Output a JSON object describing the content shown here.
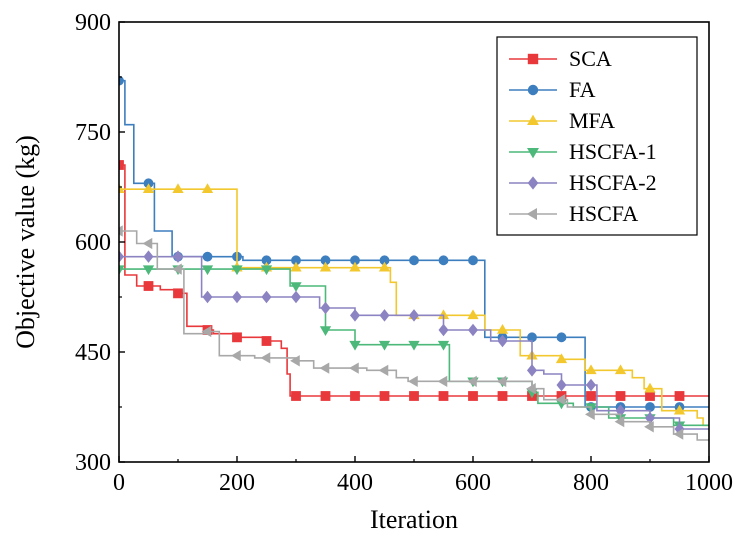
{
  "chart_data": {
    "type": "line",
    "title": "",
    "xlabel": "Iteration",
    "ylabel": "Objective value (kg)",
    "xlim": [
      0,
      1000
    ],
    "ylim": [
      300,
      900
    ],
    "xticks": [
      0,
      200,
      400,
      600,
      800,
      1000
    ],
    "yticks": [
      300,
      450,
      600,
      750,
      900
    ],
    "grid": false,
    "legend_position": "top-right",
    "series": [
      {
        "name": "SCA",
        "color": "#e8383b",
        "marker": "square",
        "points": [
          [
            0,
            705
          ],
          [
            10,
            705
          ],
          [
            10,
            555
          ],
          [
            30,
            555
          ],
          [
            30,
            540
          ],
          [
            70,
            540
          ],
          [
            70,
            535
          ],
          [
            100,
            535
          ],
          [
            100,
            530
          ],
          [
            115,
            530
          ],
          [
            115,
            485
          ],
          [
            150,
            485
          ],
          [
            150,
            480
          ],
          [
            160,
            480
          ],
          [
            160,
            475
          ],
          [
            200,
            475
          ],
          [
            200,
            470
          ],
          [
            250,
            470
          ],
          [
            250,
            465
          ],
          [
            275,
            465
          ],
          [
            275,
            455
          ],
          [
            285,
            455
          ],
          [
            285,
            420
          ],
          [
            290,
            420
          ],
          [
            290,
            390
          ],
          [
            1000,
            390
          ]
        ],
        "marker_x": [
          0,
          50,
          100,
          150,
          200,
          250,
          300,
          350,
          400,
          450,
          500,
          550,
          600,
          650,
          700,
          750,
          800,
          850,
          900,
          950
        ]
      },
      {
        "name": "FA",
        "color": "#3d7ebf",
        "marker": "circle",
        "points": [
          [
            0,
            820
          ],
          [
            10,
            820
          ],
          [
            10,
            760
          ],
          [
            25,
            760
          ],
          [
            25,
            680
          ],
          [
            60,
            680
          ],
          [
            60,
            615
          ],
          [
            90,
            615
          ],
          [
            90,
            580
          ],
          [
            210,
            580
          ],
          [
            210,
            575
          ],
          [
            620,
            575
          ],
          [
            620,
            470
          ],
          [
            790,
            470
          ],
          [
            790,
            375
          ],
          [
            1000,
            375
          ]
        ],
        "marker_x": [
          0,
          50,
          100,
          150,
          200,
          250,
          300,
          350,
          400,
          450,
          500,
          550,
          600,
          650,
          700,
          750,
          800,
          850,
          900,
          950
        ]
      },
      {
        "name": "MFA",
        "color": "#f2c82e",
        "marker": "triangle-up",
        "points": [
          [
            0,
            672
          ],
          [
            200,
            672
          ],
          [
            200,
            565
          ],
          [
            460,
            565
          ],
          [
            460,
            545
          ],
          [
            470,
            545
          ],
          [
            470,
            500
          ],
          [
            620,
            500
          ],
          [
            620,
            480
          ],
          [
            680,
            480
          ],
          [
            680,
            445
          ],
          [
            750,
            445
          ],
          [
            750,
            440
          ],
          [
            790,
            440
          ],
          [
            790,
            425
          ],
          [
            870,
            425
          ],
          [
            870,
            415
          ],
          [
            890,
            415
          ],
          [
            890,
            400
          ],
          [
            920,
            400
          ],
          [
            920,
            370
          ],
          [
            980,
            370
          ],
          [
            980,
            360
          ],
          [
            990,
            360
          ],
          [
            990,
            350
          ],
          [
            1000,
            350
          ]
        ],
        "marker_x": [
          0,
          50,
          100,
          150,
          200,
          250,
          300,
          350,
          400,
          450,
          500,
          550,
          600,
          650,
          700,
          750,
          800,
          850,
          900,
          950
        ]
      },
      {
        "name": "HSCFA-1",
        "color": "#4cb87a",
        "marker": "triangle-down",
        "points": [
          [
            0,
            563
          ],
          [
            290,
            563
          ],
          [
            290,
            540
          ],
          [
            350,
            540
          ],
          [
            350,
            480
          ],
          [
            400,
            480
          ],
          [
            400,
            460
          ],
          [
            560,
            460
          ],
          [
            560,
            410
          ],
          [
            700,
            410
          ],
          [
            700,
            395
          ],
          [
            710,
            395
          ],
          [
            710,
            380
          ],
          [
            770,
            380
          ],
          [
            770,
            375
          ],
          [
            830,
            375
          ],
          [
            830,
            360
          ],
          [
            940,
            360
          ],
          [
            940,
            350
          ],
          [
            1000,
            350
          ]
        ],
        "marker_x": [
          0,
          50,
          100,
          150,
          200,
          250,
          300,
          350,
          400,
          450,
          500,
          550,
          600,
          650,
          700,
          750,
          800,
          850,
          900,
          950
        ]
      },
      {
        "name": "HSCFA-2",
        "color": "#8c84c2",
        "marker": "diamond",
        "points": [
          [
            0,
            580
          ],
          [
            140,
            580
          ],
          [
            140,
            525
          ],
          [
            340,
            525
          ],
          [
            340,
            510
          ],
          [
            400,
            510
          ],
          [
            400,
            500
          ],
          [
            550,
            500
          ],
          [
            550,
            480
          ],
          [
            630,
            480
          ],
          [
            630,
            465
          ],
          [
            700,
            465
          ],
          [
            700,
            425
          ],
          [
            720,
            425
          ],
          [
            720,
            420
          ],
          [
            750,
            420
          ],
          [
            750,
            405
          ],
          [
            810,
            405
          ],
          [
            810,
            370
          ],
          [
            900,
            370
          ],
          [
            900,
            360
          ],
          [
            950,
            360
          ],
          [
            950,
            345
          ],
          [
            1000,
            345
          ]
        ],
        "marker_x": [
          0,
          50,
          100,
          150,
          200,
          250,
          300,
          350,
          400,
          450,
          500,
          550,
          600,
          650,
          700,
          750,
          800,
          850,
          900,
          950
        ]
      },
      {
        "name": "HSCFA",
        "color": "#a8a8a8",
        "marker": "triangle-left",
        "points": [
          [
            0,
            615
          ],
          [
            30,
            615
          ],
          [
            30,
            598
          ],
          [
            65,
            598
          ],
          [
            65,
            563
          ],
          [
            110,
            563
          ],
          [
            110,
            475
          ],
          [
            150,
            475
          ],
          [
            150,
            478
          ],
          [
            170,
            478
          ],
          [
            170,
            445
          ],
          [
            230,
            445
          ],
          [
            230,
            442
          ],
          [
            300,
            442
          ],
          [
            300,
            438
          ],
          [
            330,
            438
          ],
          [
            330,
            428
          ],
          [
            420,
            428
          ],
          [
            420,
            425
          ],
          [
            470,
            425
          ],
          [
            470,
            415
          ],
          [
            490,
            415
          ],
          [
            490,
            410
          ],
          [
            700,
            410
          ],
          [
            700,
            400
          ],
          [
            720,
            400
          ],
          [
            720,
            385
          ],
          [
            760,
            385
          ],
          [
            760,
            375
          ],
          [
            800,
            375
          ],
          [
            800,
            365
          ],
          [
            850,
            365
          ],
          [
            850,
            355
          ],
          [
            900,
            355
          ],
          [
            900,
            348
          ],
          [
            940,
            348
          ],
          [
            940,
            338
          ],
          [
            980,
            338
          ],
          [
            980,
            330
          ],
          [
            1000,
            330
          ]
        ],
        "marker_x": [
          0,
          50,
          100,
          150,
          200,
          250,
          300,
          350,
          400,
          450,
          500,
          550,
          600,
          650,
          700,
          750,
          800,
          850,
          900,
          950
        ]
      }
    ]
  }
}
